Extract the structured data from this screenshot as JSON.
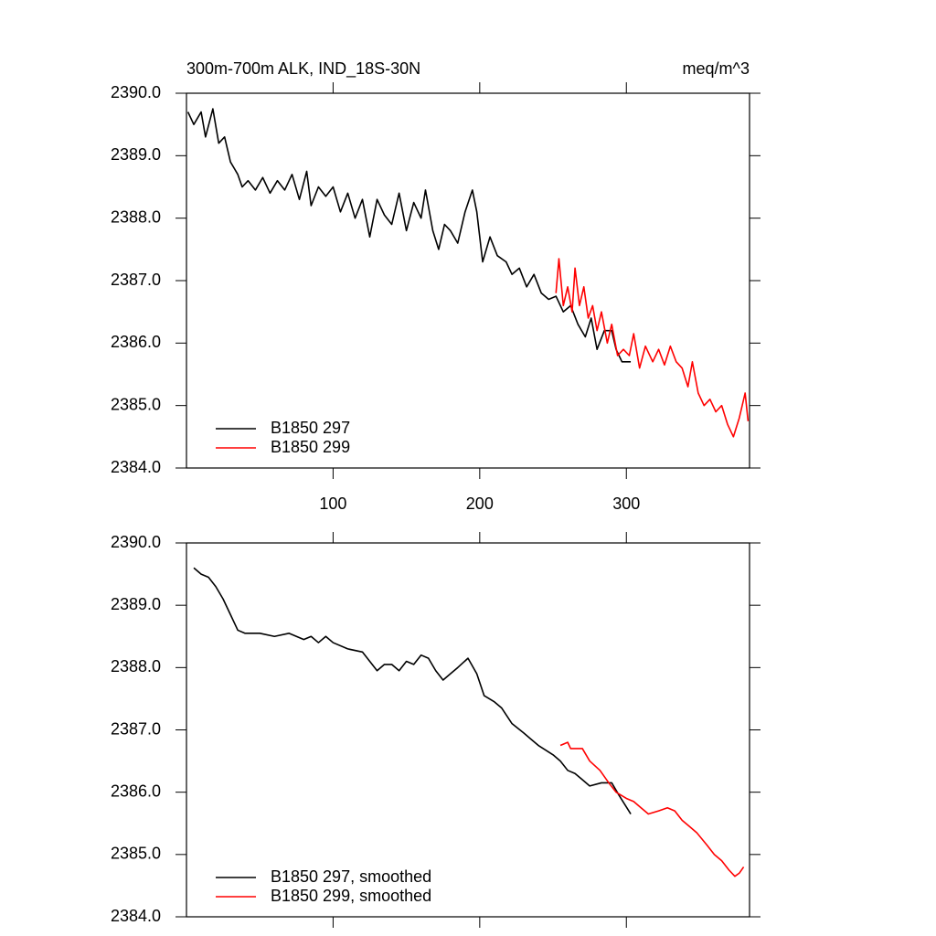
{
  "chart_data": [
    {
      "type": "line",
      "title": "300m-700m ALK, IND_18S-30N",
      "units": "meq/m^3",
      "xlim": [
        0,
        384
      ],
      "xticks": [
        100,
        200,
        300
      ],
      "show_xtick_labels": true,
      "ylim": [
        2384,
        2390
      ],
      "yticks": [
        {
          "value": 2384,
          "label": "2384.0"
        },
        {
          "value": 2385,
          "label": "2385.0"
        },
        {
          "value": 2386,
          "label": "2386.0"
        },
        {
          "value": 2387,
          "label": "2387.0"
        },
        {
          "value": 2388,
          "label": "2388.0"
        },
        {
          "value": 2389,
          "label": "2389.0"
        },
        {
          "value": 2390,
          "label": "2390.0"
        }
      ],
      "legend": "lower left",
      "series": [
        {
          "name": "B1850 297",
          "color": "#000000",
          "x": [
            1,
            5,
            10,
            13,
            18,
            22,
            26,
            30,
            35,
            38,
            42,
            47,
            52,
            57,
            62,
            67,
            72,
            77,
            82,
            85,
            90,
            95,
            100,
            105,
            110,
            115,
            120,
            125,
            130,
            135,
            140,
            145,
            150,
            155,
            160,
            163,
            168,
            172,
            176,
            180,
            185,
            190,
            195,
            198,
            202,
            207,
            212,
            218,
            222,
            227,
            232,
            237,
            242,
            247,
            252,
            257,
            262,
            267,
            272,
            276,
            280,
            285,
            290,
            293,
            297,
            303
          ],
          "values": [
            2389.7,
            2389.5,
            2389.7,
            2389.3,
            2389.75,
            2389.2,
            2389.3,
            2388.9,
            2388.7,
            2388.5,
            2388.6,
            2388.45,
            2388.65,
            2388.4,
            2388.6,
            2388.45,
            2388.7,
            2388.3,
            2388.75,
            2388.2,
            2388.5,
            2388.35,
            2388.5,
            2388.1,
            2388.4,
            2388.0,
            2388.3,
            2387.7,
            2388.3,
            2388.05,
            2387.9,
            2388.4,
            2387.8,
            2388.25,
            2388.0,
            2388.45,
            2387.8,
            2387.5,
            2387.9,
            2387.8,
            2387.6,
            2388.1,
            2388.45,
            2388.1,
            2387.3,
            2387.7,
            2387.4,
            2387.3,
            2387.1,
            2387.2,
            2386.9,
            2387.1,
            2386.8,
            2386.7,
            2386.75,
            2386.5,
            2386.6,
            2386.3,
            2386.1,
            2386.4,
            2385.9,
            2386.2,
            2386.2,
            2385.9,
            2385.7,
            2385.7
          ]
        },
        {
          "name": "B1850 299",
          "color": "#ff0000",
          "x": [
            252,
            254,
            257,
            260,
            263,
            265,
            268,
            271,
            274,
            277,
            280,
            283,
            287,
            290,
            294,
            298,
            302,
            305,
            309,
            313,
            318,
            322,
            326,
            330,
            334,
            338,
            342,
            345,
            349,
            353,
            357,
            361,
            365,
            369,
            373,
            377,
            381,
            383
          ],
          "values": [
            2386.8,
            2387.35,
            2386.6,
            2386.9,
            2386.5,
            2387.2,
            2386.6,
            2386.9,
            2386.4,
            2386.6,
            2386.2,
            2386.5,
            2386.0,
            2386.3,
            2385.8,
            2385.9,
            2385.8,
            2386.15,
            2385.6,
            2385.95,
            2385.7,
            2385.9,
            2385.65,
            2385.95,
            2385.7,
            2385.6,
            2385.3,
            2385.7,
            2385.2,
            2385.0,
            2385.1,
            2384.9,
            2385.0,
            2384.7,
            2384.5,
            2384.8,
            2385.2,
            2384.75
          ]
        }
      ]
    },
    {
      "type": "line",
      "xlim": [
        0,
        384
      ],
      "xticks": [
        100,
        200,
        300
      ],
      "show_xtick_labels": false,
      "ylim": [
        2384,
        2390
      ],
      "yticks": [
        {
          "value": 2384,
          "label": "2384.0"
        },
        {
          "value": 2385,
          "label": "2385.0"
        },
        {
          "value": 2386,
          "label": "2386.0"
        },
        {
          "value": 2387,
          "label": "2387.0"
        },
        {
          "value": 2388,
          "label": "2388.0"
        },
        {
          "value": 2389,
          "label": "2389.0"
        },
        {
          "value": 2390,
          "label": "2390.0"
        }
      ],
      "legend": "lower left",
      "series": [
        {
          "name": "B1850 297, smoothed",
          "color": "#000000",
          "x": [
            5,
            10,
            15,
            20,
            25,
            30,
            35,
            40,
            50,
            60,
            70,
            80,
            85,
            90,
            95,
            100,
            110,
            120,
            125,
            130,
            135,
            140,
            145,
            150,
            155,
            160,
            165,
            170,
            175,
            180,
            185,
            192,
            198,
            203,
            210,
            215,
            222,
            230,
            235,
            240,
            250,
            255,
            260,
            265,
            270,
            275,
            283,
            290,
            295,
            303
          ],
          "values": [
            2389.6,
            2389.5,
            2389.45,
            2389.3,
            2389.1,
            2388.85,
            2388.6,
            2388.55,
            2388.55,
            2388.5,
            2388.55,
            2388.45,
            2388.5,
            2388.4,
            2388.5,
            2388.4,
            2388.3,
            2388.25,
            2388.1,
            2387.95,
            2388.05,
            2388.05,
            2387.95,
            2388.1,
            2388.05,
            2388.2,
            2388.15,
            2387.95,
            2387.8,
            2387.9,
            2388.0,
            2388.15,
            2387.9,
            2387.55,
            2387.45,
            2387.35,
            2387.1,
            2386.95,
            2386.85,
            2386.75,
            2386.6,
            2386.5,
            2386.35,
            2386.3,
            2386.2,
            2386.1,
            2386.15,
            2386.15,
            2385.95,
            2385.65
          ]
        },
        {
          "name": "B1850 299, smoothed",
          "color": "#ff0000",
          "x": [
            255,
            260,
            262,
            270,
            275,
            282,
            288,
            293,
            300,
            305,
            310,
            315,
            322,
            328,
            333,
            338,
            343,
            348,
            355,
            360,
            365,
            370,
            374,
            377,
            380
          ],
          "values": [
            2386.75,
            2386.8,
            2386.7,
            2386.7,
            2386.5,
            2386.35,
            2386.15,
            2386.0,
            2385.9,
            2385.85,
            2385.75,
            2385.65,
            2385.7,
            2385.75,
            2385.7,
            2385.55,
            2385.45,
            2385.35,
            2385.15,
            2385.0,
            2384.9,
            2384.75,
            2384.65,
            2384.7,
            2384.8
          ]
        }
      ]
    }
  ]
}
